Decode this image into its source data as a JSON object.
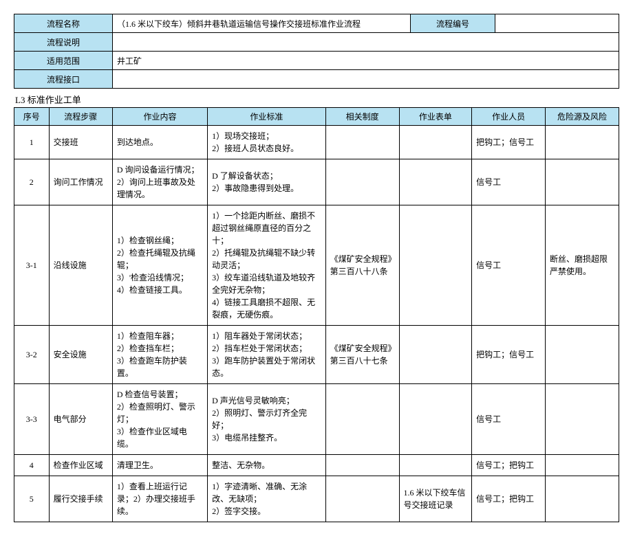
{
  "header": {
    "name_label": "流程名称",
    "name_value": "（1.6 米以下绞车）倾斜井巷轨道运输信号操作交接班标准作业流程",
    "code_label": "流程编号",
    "code_value": "",
    "desc_label": "流程说明",
    "desc_value": "",
    "scope_label": "适用范围",
    "scope_value": "井工矿",
    "interface_label": "流程接口",
    "interface_value": ""
  },
  "section_title": "L3 标准作业工单",
  "columns": {
    "seq": "序号",
    "step": "流程步骤",
    "content": "作业内容",
    "standard": "作业标准",
    "system": "相关制度",
    "form": "作业表单",
    "person": "作业人员",
    "risk": "危险源及风险"
  },
  "rows": [
    {
      "seq": "1",
      "step": "交接班",
      "content": "到达地点。",
      "standard": "1）现场交接班；\n2）接班人员状态良好。",
      "system": "",
      "form": "",
      "person": "把钩工；信号工",
      "risk": ""
    },
    {
      "seq": "2",
      "step": "询问工作情况",
      "content": "D 询问设备运行情况；2）询问上班事故及处理情况。",
      "standard": "D 了解设备状态；\n2）事故隐患得到处理。",
      "system": "",
      "form": "",
      "person": "信号工",
      "risk": ""
    },
    {
      "seq": "3-1",
      "step": "沿线设施",
      "content": "1）检查钢丝绳；\n2）检查托绳辊及抗绳辊；\n3）'检查沿线情况；\n4）检查链接工具。",
      "standard": "1）一个捻距内断丝、磨损不超过钢丝绳原直径的百分之十；\n2）托绳辊及抗绳辊不缺少转动灵活；\n3）绞车道沿线轨道及地较齐全完好无杂物；\n4）链接工具磨损不超限、无裂痕，无硬伤痕。",
      "system": "《煤矿安全规程》第三百八十八条",
      "form": "",
      "person": "信号工",
      "risk": "断丝、磨损超限严禁使用。"
    },
    {
      "seq": "3-2",
      "step": "安全设施",
      "content": "1）检查阻车器；\n2）检查挡车栏；\n3）检查跑车防护装置。",
      "standard": "1）阻车器处于常闭状态；\n2）挡车栏处于常闭状态；\n3）跑车防护装置处于常闭状态。",
      "system": "《煤矿安全规程》第三百八十七条",
      "form": "",
      "person": "把钩工；信号工",
      "risk": ""
    },
    {
      "seq": "3-3",
      "step": "电气部分",
      "content": "D 检查信号装置；\n2）检查照明灯、警示灯；\n3）检查作业区域电缆。",
      "standard": "D 声光信号灵敏响亮；\n2）照明灯、警示灯齐全完好；\n3）电缆吊挂整齐。",
      "system": "",
      "form": "",
      "person": "信号工",
      "risk": ""
    },
    {
      "seq": "4",
      "step": "检查作业区域",
      "content": "清理卫生。",
      "standard": "整洁、无杂物。",
      "system": "",
      "form": "",
      "person": "信号工；把钩工",
      "risk": ""
    },
    {
      "seq": "5",
      "step": "履行交接手续",
      "content": "1）查看上班运行记录；2）办理交接班手续。",
      "standard": "1）字迹清晰、准确、无涂改、无缺项；\n2）签字交接。",
      "system": "",
      "form": "1.6 米以下绞车信号交接班记录",
      "person": "信号工；把钩工",
      "risk": ""
    }
  ]
}
